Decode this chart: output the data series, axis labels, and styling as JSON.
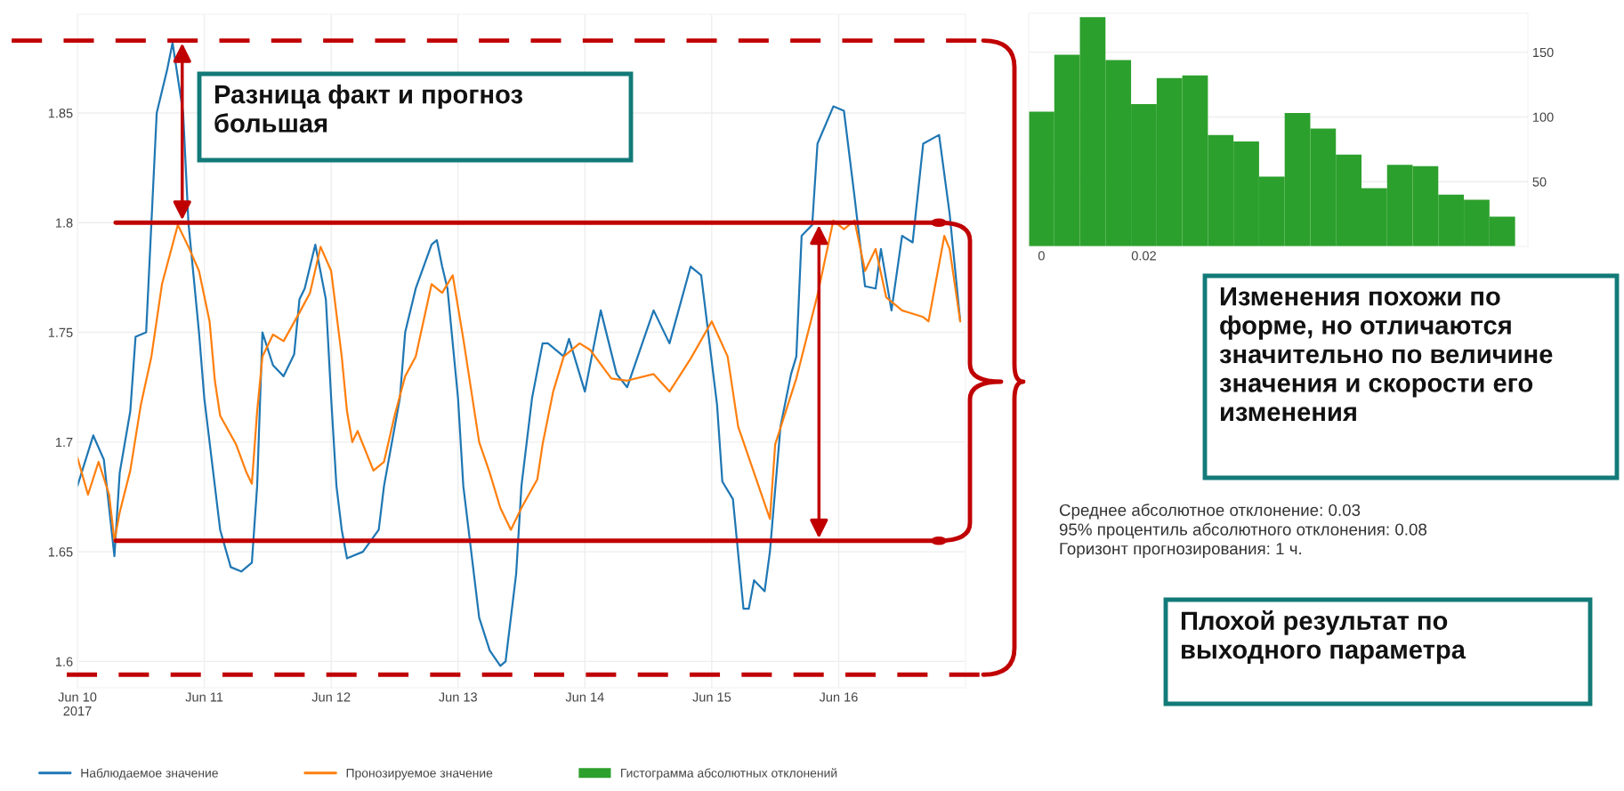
{
  "chart_data": [
    {
      "type": "line",
      "series": [
        {
          "name": "Наблюдаемое значение",
          "color": "#1f77b4",
          "x": [
            "2017-06-10T00:00",
            "2017-06-10T03:00",
            "2017-06-10T05:00",
            "2017-06-10T07:00",
            "2017-06-10T08:00",
            "2017-06-10T10:00",
            "2017-06-10T11:00",
            "2017-06-10T13:00",
            "2017-06-10T14:00",
            "2017-06-10T15:00",
            "2017-06-10T16:00",
            "2017-06-10T17:00",
            "2017-06-10T18:00",
            "2017-06-10T20:00",
            "2017-06-10T21:00",
            "2017-06-10T23:00",
            "2017-06-11T00:00",
            "2017-06-11T02:00",
            "2017-06-11T03:00",
            "2017-06-11T05:00",
            "2017-06-11T07:00",
            "2017-06-11T09:00",
            "2017-06-11T10:00",
            "2017-06-11T11:00",
            "2017-06-11T13:00",
            "2017-06-11T15:00",
            "2017-06-11T17:00",
            "2017-06-11T18:00",
            "2017-06-11T19:00",
            "2017-06-11T21:00",
            "2017-06-11T23:00",
            "2017-06-12T00:00",
            "2017-06-12T01:00",
            "2017-06-12T02:00",
            "2017-06-12T03:00",
            "2017-06-12T06:00",
            "2017-06-12T09:00",
            "2017-06-12T10:00",
            "2017-06-12T13:00",
            "2017-06-12T14:00",
            "2017-06-12T16:00",
            "2017-06-12T19:00",
            "2017-06-12T20:00",
            "2017-06-12T21:00",
            "2017-06-12T22:00",
            "2017-06-13T00:00",
            "2017-06-13T01:00",
            "2017-06-13T03:00",
            "2017-06-13T04:00",
            "2017-06-13T06:00",
            "2017-06-13T08:00",
            "2017-06-13T09:00",
            "2017-06-13T11:00",
            "2017-06-13T12:00",
            "2017-06-13T14:00",
            "2017-06-13T16:00",
            "2017-06-13T17:00",
            "2017-06-13T20:00",
            "2017-06-13T21:00",
            "2017-06-14T00:00",
            "2017-06-14T03:00",
            "2017-06-14T06:00",
            "2017-06-14T08:00",
            "2017-06-14T13:00",
            "2017-06-14T16:00",
            "2017-06-14T20:00",
            "2017-06-14T22:00",
            "2017-06-15T01:00",
            "2017-06-15T02:00",
            "2017-06-15T04:00",
            "2017-06-15T06:00",
            "2017-06-15T07:00",
            "2017-06-15T08:00",
            "2017-06-15T10:00",
            "2017-06-15T11:00",
            "2017-06-15T13:00",
            "2017-06-15T15:00",
            "2017-06-15T16:00",
            "2017-06-15T17:00",
            "2017-06-15T19:00",
            "2017-06-15T20:00",
            "2017-06-15T23:00",
            "2017-06-16T01:00",
            "2017-06-16T03:00",
            "2017-06-16T05:00",
            "2017-06-16T07:00",
            "2017-06-16T08:00",
            "2017-06-16T10:00",
            "2017-06-16T12:00",
            "2017-06-16T14:00",
            "2017-06-16T16:00",
            "2017-06-16T19:00",
            "2017-06-16T21:00",
            "2017-06-16T23:00"
          ],
          "values": [
            1.68,
            1.703,
            1.692,
            1.648,
            1.686,
            1.714,
            1.748,
            1.75,
            1.8,
            1.85,
            1.86,
            1.87,
            1.882,
            1.85,
            1.8,
            1.75,
            1.72,
            1.68,
            1.66,
            1.643,
            1.641,
            1.645,
            1.68,
            1.75,
            1.735,
            1.73,
            1.74,
            1.765,
            1.77,
            1.79,
            1.765,
            1.72,
            1.68,
            1.66,
            1.647,
            1.65,
            1.66,
            1.68,
            1.72,
            1.75,
            1.77,
            1.79,
            1.792,
            1.78,
            1.77,
            1.72,
            1.68,
            1.64,
            1.62,
            1.605,
            1.598,
            1.6,
            1.64,
            1.68,
            1.72,
            1.745,
            1.745,
            1.739,
            1.747,
            1.723,
            1.76,
            1.731,
            1.725,
            1.76,
            1.745,
            1.78,
            1.776,
            1.717,
            1.682,
            1.674,
            1.624,
            1.624,
            1.637,
            1.632,
            1.65,
            1.707,
            1.731,
            1.739,
            1.794,
            1.799,
            1.836,
            1.853,
            1.851,
            1.812,
            1.771,
            1.77,
            1.788,
            1.76,
            1.794,
            1.791,
            1.836,
            1.84,
            1.804,
            1.755
          ]
        },
        {
          "name": "Пронозируемое значение",
          "color": "#ff7f0e",
          "x": [
            "2017-06-10T00:00",
            "2017-06-10T02:00",
            "2017-06-10T04:00",
            "2017-06-10T06:00",
            "2017-06-10T07:00",
            "2017-06-10T08:00",
            "2017-06-10T10:00",
            "2017-06-10T12:00",
            "2017-06-10T14:00",
            "2017-06-10T16:00",
            "2017-06-10T19:00",
            "2017-06-10T21:00",
            "2017-06-10T23:00",
            "2017-06-11T01:00",
            "2017-06-11T02:00",
            "2017-06-11T03:00",
            "2017-06-11T06:00",
            "2017-06-11T08:00",
            "2017-06-11T09:00",
            "2017-06-11T10:00",
            "2017-06-11T11:00",
            "2017-06-11T13:00",
            "2017-06-11T15:00",
            "2017-06-11T18:00",
            "2017-06-11T20:00",
            "2017-06-11T22:00",
            "2017-06-12T00:00",
            "2017-06-12T02:00",
            "2017-06-12T03:00",
            "2017-06-12T04:00",
            "2017-06-12T05:00",
            "2017-06-12T08:00",
            "2017-06-12T10:00",
            "2017-06-12T12:00",
            "2017-06-12T14:00",
            "2017-06-12T16:00",
            "2017-06-12T19:00",
            "2017-06-12T21:00",
            "2017-06-12T23:00",
            "2017-06-13T01:00",
            "2017-06-13T04:00",
            "2017-06-13T06:00",
            "2017-06-13T08:00",
            "2017-06-13T10:00",
            "2017-06-13T12:00",
            "2017-06-13T15:00",
            "2017-06-13T16:00",
            "2017-06-13T18:00",
            "2017-06-13T20:00",
            "2017-06-13T23:00",
            "2017-06-14T01:00",
            "2017-06-14T05:00",
            "2017-06-14T08:00",
            "2017-06-14T13:00",
            "2017-06-14T16:00",
            "2017-06-14T20:00",
            "2017-06-15T00:00",
            "2017-06-15T03:00",
            "2017-06-15T05:00",
            "2017-06-15T08:00",
            "2017-06-15T11:00",
            "2017-06-15T12:00",
            "2017-06-15T16:00",
            "2017-06-15T20:00",
            "2017-06-15T23:00",
            "2017-06-16T01:00",
            "2017-06-16T03:00",
            "2017-06-16T05:00",
            "2017-06-16T07:00",
            "2017-06-16T09:00",
            "2017-06-16T12:00",
            "2017-06-16T16:00",
            "2017-06-16T17:00",
            "2017-06-16T20:00",
            "2017-06-16T21:00",
            "2017-06-16T23:00"
          ],
          "values": [
            1.693,
            1.676,
            1.691,
            1.676,
            1.655,
            1.668,
            1.687,
            1.717,
            1.739,
            1.772,
            1.799,
            1.789,
            1.778,
            1.755,
            1.728,
            1.712,
            1.699,
            1.686,
            1.681,
            1.714,
            1.739,
            1.749,
            1.746,
            1.759,
            1.768,
            1.789,
            1.778,
            1.739,
            1.714,
            1.7,
            1.705,
            1.687,
            1.691,
            1.712,
            1.73,
            1.739,
            1.772,
            1.768,
            1.776,
            1.747,
            1.7,
            1.686,
            1.67,
            1.66,
            1.67,
            1.683,
            1.699,
            1.723,
            1.739,
            1.745,
            1.742,
            1.729,
            1.728,
            1.731,
            1.723,
            1.738,
            1.755,
            1.739,
            1.707,
            1.686,
            1.665,
            1.699,
            1.729,
            1.767,
            1.801,
            1.797,
            1.801,
            1.778,
            1.788,
            1.766,
            1.76,
            1.757,
            1.755,
            1.794,
            1.788,
            1.755
          ]
        }
      ],
      "xlim": [
        "2017-06-10T00:00",
        "2017-06-17T00:00"
      ],
      "xticks": [
        {
          "value": "2017-06-10",
          "label": "Jun 10\n2017"
        },
        {
          "value": "2017-06-11",
          "label": "Jun 11"
        },
        {
          "value": "2017-06-12",
          "label": "Jun 12"
        },
        {
          "value": "2017-06-13",
          "label": "Jun 13"
        },
        {
          "value": "2017-06-14",
          "label": "Jun 14"
        },
        {
          "value": "2017-06-15",
          "label": "Jun 15"
        },
        {
          "value": "2017-06-16",
          "label": "Jun 16"
        }
      ],
      "ylim": [
        1.588,
        1.895
      ],
      "yticks": [
        1.6,
        1.65,
        1.7,
        1.75,
        1.8,
        1.85
      ],
      "grid": true,
      "legend": "bottom",
      "ref_lines": [
        {
          "axis": "y",
          "value": 1.883,
          "color": "#c00000",
          "line_style": "dashed"
        },
        {
          "axis": "y",
          "value": 1.594,
          "color": "#c00000",
          "line_style": "dashed"
        },
        {
          "axis": "y",
          "value": 1.8,
          "color": "#c00000",
          "line_style": "solid"
        },
        {
          "axis": "y",
          "value": 1.655,
          "color": "#c00000",
          "line_style": "solid"
        }
      ],
      "annotations": [
        "Разница факт и прогноз\nбольшая",
        "Изменения похожи по\nформе, но отличаются\nзначительно по величине\nзначения и скорости его\nизменения",
        "Среднее абсолютное отклонение: 0.03\n95% процентиль абсолютного отклонения: 0.08\nГоризонт прогнозирования: 1 ч.",
        "Плохой результат по\nвыходного параметра"
      ]
    },
    {
      "type": "histogram",
      "bins": [
        -0.0025,
        0.0025,
        0.0075,
        0.0125,
        0.0175,
        0.0225,
        0.0275,
        0.0325,
        0.0375,
        0.0425,
        0.0475,
        0.0525,
        0.0575,
        0.0625,
        0.0675,
        0.0725,
        0.0775,
        0.0825,
        0.0875,
        0.0925
      ],
      "series": [
        {
          "name": "Гистограмма абсолютных отклонений",
          "color": "#2ca02c",
          "values": [
            104,
            148,
            177,
            144,
            110,
            130,
            132,
            86,
            81,
            54,
            103,
            91,
            71,
            45,
            63,
            62,
            40,
            36,
            23
          ]
        }
      ],
      "xlim": [
        -0.0025,
        0.095
      ],
      "xticks": [
        0,
        0.02
      ],
      "ylim": [
        0,
        180
      ],
      "yticks": [
        50,
        100,
        150
      ],
      "grid": "y",
      "legend": "bottom"
    }
  ]
}
